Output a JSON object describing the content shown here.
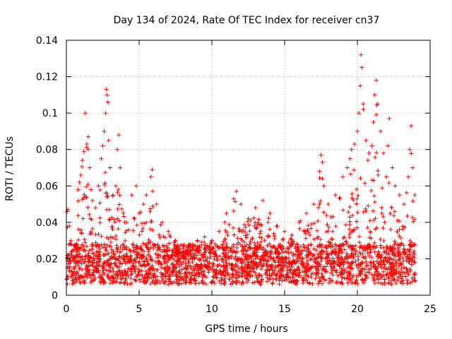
{
  "chart_data": {
    "type": "scatter",
    "title": "Day 134 of 2024, Rate Of TEC Index for receiver cn37",
    "xlabel": "GPS time / hours",
    "ylabel": "ROTI / TECUs",
    "xlim": [
      0,
      25
    ],
    "ylim": [
      0,
      0.14
    ],
    "x_ticks": [
      0,
      5,
      10,
      15,
      20,
      25
    ],
    "x_tick_labels": [
      "0",
      "5",
      "10",
      "15",
      "20",
      "25"
    ],
    "y_ticks": [
      0,
      0.02,
      0.04,
      0.06,
      0.08,
      0.1,
      0.12,
      0.14
    ],
    "y_tick_labels": [
      "0",
      "0.02",
      "0.04",
      "0.06",
      "0.08",
      "0.1",
      "0.12",
      "0.14"
    ],
    "grid": true,
    "marker": "plus",
    "color": "#ff0000",
    "series": [
      {
        "name": "ROTI",
        "note": "dense scatter; baseline ~0.005–0.03 TECU/s over 0–24 h, with bursts",
        "points": [
          [
            0.05,
            0.046
          ],
          [
            0.1,
            0.047
          ],
          [
            0.2,
            0.038
          ],
          [
            0.3,
            0.03
          ],
          [
            0.5,
            0.025
          ],
          [
            0.7,
            0.028
          ],
          [
            0.8,
            0.058
          ],
          [
            0.9,
            0.062
          ],
          [
            1.0,
            0.066
          ],
          [
            1.1,
            0.074
          ],
          [
            1.2,
            0.079
          ],
          [
            1.3,
            0.1
          ],
          [
            1.4,
            0.083
          ],
          [
            1.5,
            0.087
          ],
          [
            1.6,
            0.07
          ],
          [
            1.7,
            0.058
          ],
          [
            1.8,
            0.052
          ],
          [
            2.0,
            0.048
          ],
          [
            2.2,
            0.06
          ],
          [
            2.4,
            0.075
          ],
          [
            2.5,
            0.082
          ],
          [
            2.6,
            0.09
          ],
          [
            2.7,
            0.1
          ],
          [
            2.75,
            0.113
          ],
          [
            2.8,
            0.11
          ],
          [
            2.85,
            0.106
          ],
          [
            2.9,
            0.085
          ],
          [
            3.0,
            0.07
          ],
          [
            3.2,
            0.055
          ],
          [
            3.4,
            0.06
          ],
          [
            3.5,
            0.08
          ],
          [
            3.6,
            0.088
          ],
          [
            3.7,
            0.07
          ],
          [
            4.0,
            0.04
          ],
          [
            4.5,
            0.055
          ],
          [
            4.8,
            0.06
          ],
          [
            5.0,
            0.045
          ],
          [
            5.3,
            0.05
          ],
          [
            5.5,
            0.055
          ],
          [
            5.8,
            0.065
          ],
          [
            5.9,
            0.069
          ],
          [
            6.2,
            0.05
          ],
          [
            6.6,
            0.04
          ],
          [
            7.0,
            0.035
          ],
          [
            7.5,
            0.03
          ],
          [
            8.0,
            0.027
          ],
          [
            8.5,
            0.028
          ],
          [
            9.0,
            0.03
          ],
          [
            9.5,
            0.032
          ],
          [
            10.0,
            0.03
          ],
          [
            10.5,
            0.035
          ],
          [
            11.0,
            0.045
          ],
          [
            11.5,
            0.053
          ],
          [
            11.7,
            0.057
          ],
          [
            12.0,
            0.05
          ],
          [
            12.5,
            0.042
          ],
          [
            13.0,
            0.048
          ],
          [
            13.5,
            0.052
          ],
          [
            14.0,
            0.045
          ],
          [
            14.5,
            0.038
          ],
          [
            15.0,
            0.035
          ],
          [
            15.5,
            0.033
          ],
          [
            16.0,
            0.04
          ],
          [
            16.5,
            0.045
          ],
          [
            17.0,
            0.05
          ],
          [
            17.4,
            0.068
          ],
          [
            17.5,
            0.077
          ],
          [
            17.6,
            0.073
          ],
          [
            17.7,
            0.06
          ],
          [
            18.0,
            0.05
          ],
          [
            18.5,
            0.055
          ],
          [
            19.0,
            0.065
          ],
          [
            19.3,
            0.07
          ],
          [
            19.5,
            0.075
          ],
          [
            19.6,
            0.08
          ],
          [
            19.8,
            0.083
          ],
          [
            20.0,
            0.09
          ],
          [
            20.1,
            0.1
          ],
          [
            20.2,
            0.115
          ],
          [
            20.25,
            0.132
          ],
          [
            20.3,
            0.125
          ],
          [
            20.4,
            0.105
          ],
          [
            20.6,
            0.085
          ],
          [
            20.8,
            0.078
          ],
          [
            21.0,
            0.082
          ],
          [
            21.1,
            0.095
          ],
          [
            21.2,
            0.11
          ],
          [
            21.3,
            0.118
          ],
          [
            21.4,
            0.105
          ],
          [
            21.6,
            0.09
          ],
          [
            21.8,
            0.078
          ],
          [
            22.0,
            0.065
          ],
          [
            22.1,
            0.082
          ],
          [
            22.2,
            0.097
          ],
          [
            22.4,
            0.07
          ],
          [
            22.6,
            0.06
          ],
          [
            22.9,
            0.055
          ],
          [
            23.2,
            0.05
          ],
          [
            23.5,
            0.065
          ],
          [
            23.6,
            0.08
          ],
          [
            23.7,
            0.093
          ],
          [
            23.8,
            0.07
          ],
          [
            23.95,
            0.055
          ]
        ]
      }
    ]
  }
}
